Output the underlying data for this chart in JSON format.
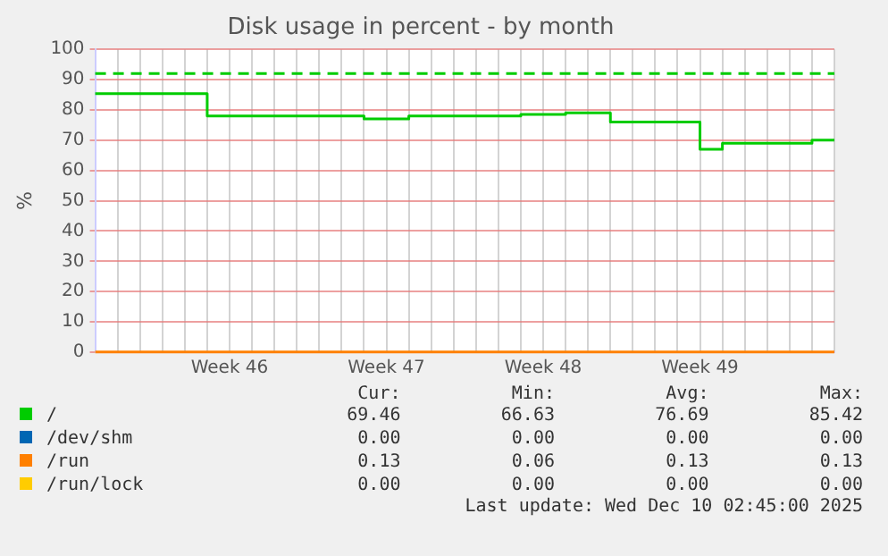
{
  "chart_data": {
    "type": "step",
    "title": "Disk usage in percent - by month",
    "ylabel": "%",
    "categories": [
      null,
      null,
      null,
      null,
      null,
      null,
      "Week 46",
      null,
      null,
      null,
      null,
      null,
      null,
      "Week 47",
      null,
      null,
      null,
      null,
      null,
      null,
      "Week 48",
      null,
      null,
      null,
      null,
      null,
      null,
      "Week 49",
      null,
      null,
      null,
      null,
      null,
      null
    ],
    "ylim": [
      0,
      100
    ],
    "yticks": [
      0,
      10,
      20,
      30,
      40,
      50,
      60,
      70,
      80,
      90,
      100
    ],
    "series": [
      {
        "name": "/",
        "color": "#00cc00",
        "values": [
          85.4,
          85.4,
          85.4,
          85.4,
          85.4,
          78,
          78,
          78,
          78,
          78,
          78,
          78,
          77,
          77,
          78,
          78,
          78,
          78,
          78,
          78.5,
          78.5,
          79,
          79,
          76,
          76,
          76,
          76,
          67,
          69,
          69,
          69,
          69,
          70,
          70
        ]
      },
      {
        "name": "/dev/shm",
        "color": "#0066b3",
        "values": [
          null,
          null,
          null,
          null,
          null,
          null,
          null,
          null,
          null,
          null,
          null,
          null,
          null,
          null,
          null,
          null,
          null,
          null,
          null,
          null,
          null,
          null,
          null,
          null,
          null,
          null,
          null,
          null,
          null,
          null,
          null,
          null,
          null,
          null
        ]
      },
      {
        "name": "/run",
        "color": "#ff8000",
        "values": [
          0.1,
          0.1,
          0.1,
          0.1,
          0.1,
          0.1,
          0.1,
          0.1,
          0.1,
          0.1,
          0.1,
          0.1,
          0.1,
          0.1,
          0.1,
          0.1,
          0.1,
          0.1,
          0.1,
          0.1,
          0.1,
          0.1,
          0.1,
          0.1,
          0.1,
          0.1,
          0.1,
          0.1,
          0.1,
          0.1,
          0.1,
          0.1,
          0.1,
          0.1
        ]
      },
      {
        "name": "/run/lock",
        "color": "#ffcc00",
        "values": [
          null,
          null,
          null,
          null,
          null,
          null,
          null,
          null,
          null,
          null,
          null,
          null,
          null,
          null,
          null,
          null,
          null,
          null,
          null,
          null,
          null,
          null,
          null,
          null,
          null,
          null,
          null,
          null,
          null,
          null,
          null,
          null,
          null,
          null
        ]
      }
    ],
    "ref_lines": [
      {
        "axis": "y",
        "value": 92,
        "color": "#00cc00",
        "line_style": "dashed"
      }
    ],
    "grid": true,
    "legend": "bottom",
    "annotations": [
      "Cur:",
      "Min:",
      "Avg:",
      "Max:",
      "69.46",
      "66.63",
      "76.69",
      "85.42",
      "0.00",
      "0.00",
      "0.00",
      "0.00",
      "0.13",
      "0.06",
      "0.13",
      "0.13",
      "0.00",
      "0.00",
      "0.00",
      "0.00",
      "Last update: Wed Dec 10 02:45:00 2025"
    ]
  }
}
